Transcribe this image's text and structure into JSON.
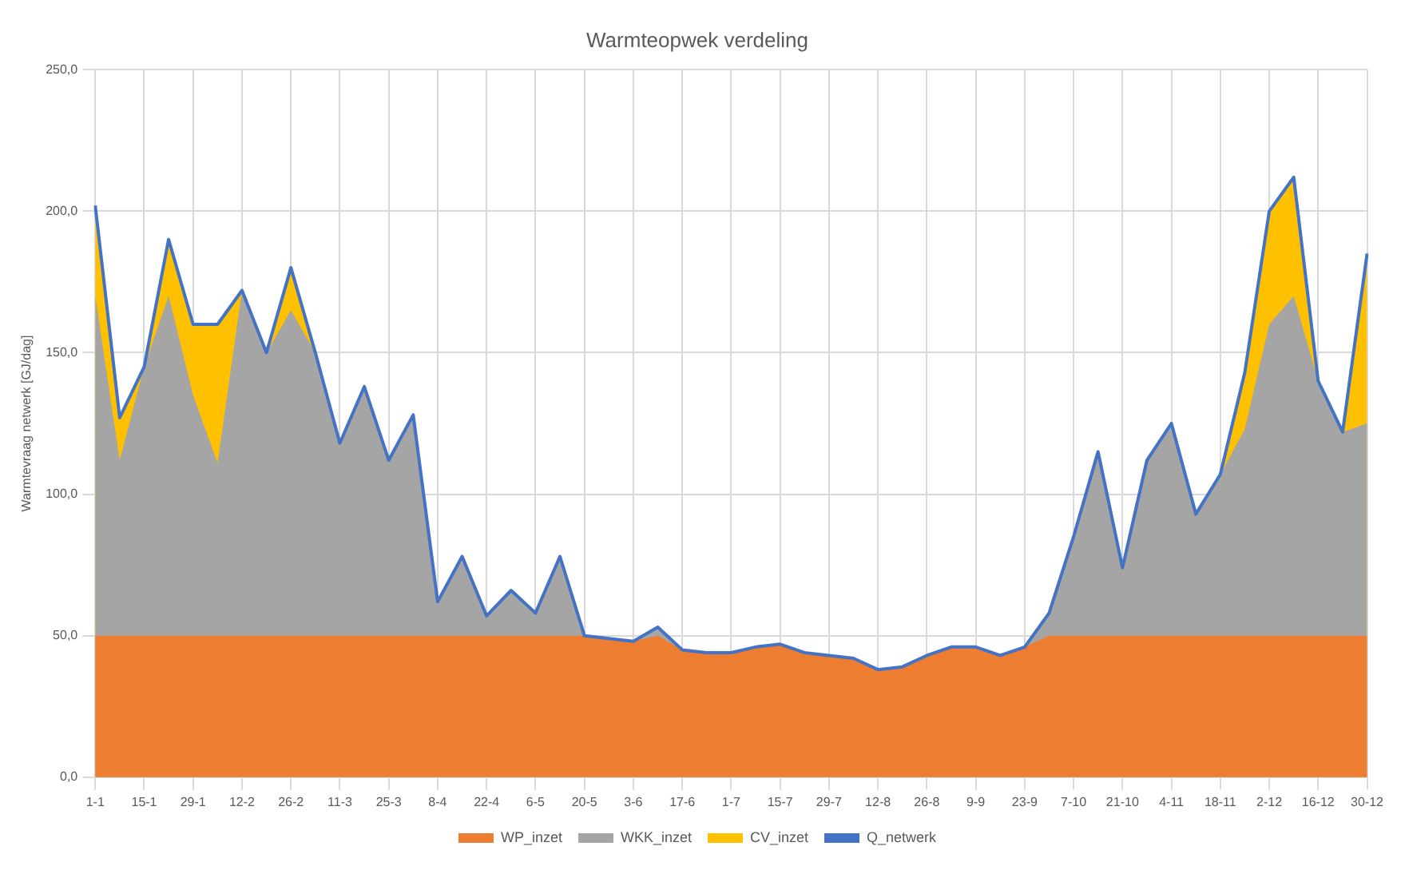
{
  "chart_data": {
    "type": "area",
    "title": "Warmteopwek verdeling",
    "ylabel": "Warmtevraag netwerk [GJ/dag]",
    "stacked": true,
    "legend": "bottom",
    "grid": true,
    "marker": "none",
    "categories": [
      "1-1",
      null,
      "15-1",
      null,
      "29-1",
      null,
      "12-2",
      null,
      "26-2",
      null,
      "11-3",
      null,
      "25-3",
      null,
      "8-4",
      null,
      "22-4",
      null,
      "6-5",
      null,
      "20-5",
      null,
      "3-6",
      null,
      "17-6",
      null,
      "1-7",
      null,
      "15-7",
      null,
      "29-7",
      null,
      "12-8",
      null,
      "26-8",
      null,
      "9-9",
      null,
      "23-9",
      null,
      "7-10",
      null,
      "21-10",
      null,
      "4-11",
      null,
      "18-11",
      null,
      "2-12",
      null,
      "16-12",
      null,
      "30-12"
    ],
    "ylim": [
      0,
      250
    ],
    "yticks": [
      {
        "value": 0,
        "label": "0,0"
      },
      {
        "value": 50,
        "label": "50,0"
      },
      {
        "value": 100,
        "label": "100,0"
      },
      {
        "value": 150,
        "label": "150,0"
      },
      {
        "value": 200,
        "label": "200,0"
      },
      {
        "value": 250,
        "label": "250,0"
      }
    ],
    "series": [
      {
        "name": "WP_inzet",
        "type": "area",
        "color": "#ed7d31",
        "values": [
          50,
          50,
          50,
          50,
          50,
          50,
          50,
          50,
          50,
          50,
          50,
          50,
          50,
          50,
          50,
          50,
          50,
          50,
          50,
          50,
          50,
          49,
          48,
          50,
          45,
          44,
          44,
          46,
          47,
          44,
          43,
          42,
          38,
          39,
          43,
          46,
          46,
          43,
          46,
          50,
          50,
          50,
          50,
          50,
          50,
          50,
          50,
          50,
          50,
          50,
          50,
          50,
          50
        ]
      },
      {
        "name": "WKK_inzet",
        "type": "area",
        "color": "#a5a5a5",
        "values": [
          120,
          62,
          95,
          120,
          85,
          61,
          122,
          100,
          115,
          100,
          68,
          88,
          62,
          78,
          12,
          28,
          7,
          16,
          8,
          28,
          0,
          0,
          0,
          3,
          0,
          0,
          0,
          0,
          0,
          0,
          0,
          0,
          0,
          0,
          0,
          0,
          0,
          0,
          0,
          8,
          35,
          65,
          24,
          62,
          75,
          43,
          57,
          73,
          110,
          120,
          90,
          72,
          75
        ]
      },
      {
        "name": "CV_inzet",
        "type": "area",
        "color": "#ffc000",
        "values": [
          32,
          15,
          0,
          20,
          25,
          49,
          0,
          0,
          15,
          0,
          0,
          0,
          0,
          0,
          0,
          0,
          0,
          0,
          0,
          0,
          0,
          0,
          0,
          0,
          0,
          0,
          0,
          0,
          0,
          0,
          0,
          0,
          0,
          0,
          0,
          0,
          0,
          0,
          0,
          0,
          0,
          0,
          0,
          0,
          0,
          0,
          0,
          20,
          40,
          42,
          0,
          0,
          60
        ]
      },
      {
        "name": "Q_netwerk",
        "type": "line",
        "color": "#4472c4",
        "values": [
          202,
          127,
          145,
          190,
          160,
          160,
          172,
          150,
          180,
          150,
          118,
          138,
          112,
          128,
          62,
          78,
          57,
          66,
          58,
          78,
          50,
          49,
          48,
          53,
          45,
          44,
          44,
          46,
          47,
          44,
          43,
          42,
          38,
          39,
          43,
          46,
          46,
          43,
          46,
          58,
          85,
          115,
          74,
          112,
          125,
          93,
          107,
          143,
          200,
          212,
          140,
          122,
          185
        ]
      }
    ]
  }
}
